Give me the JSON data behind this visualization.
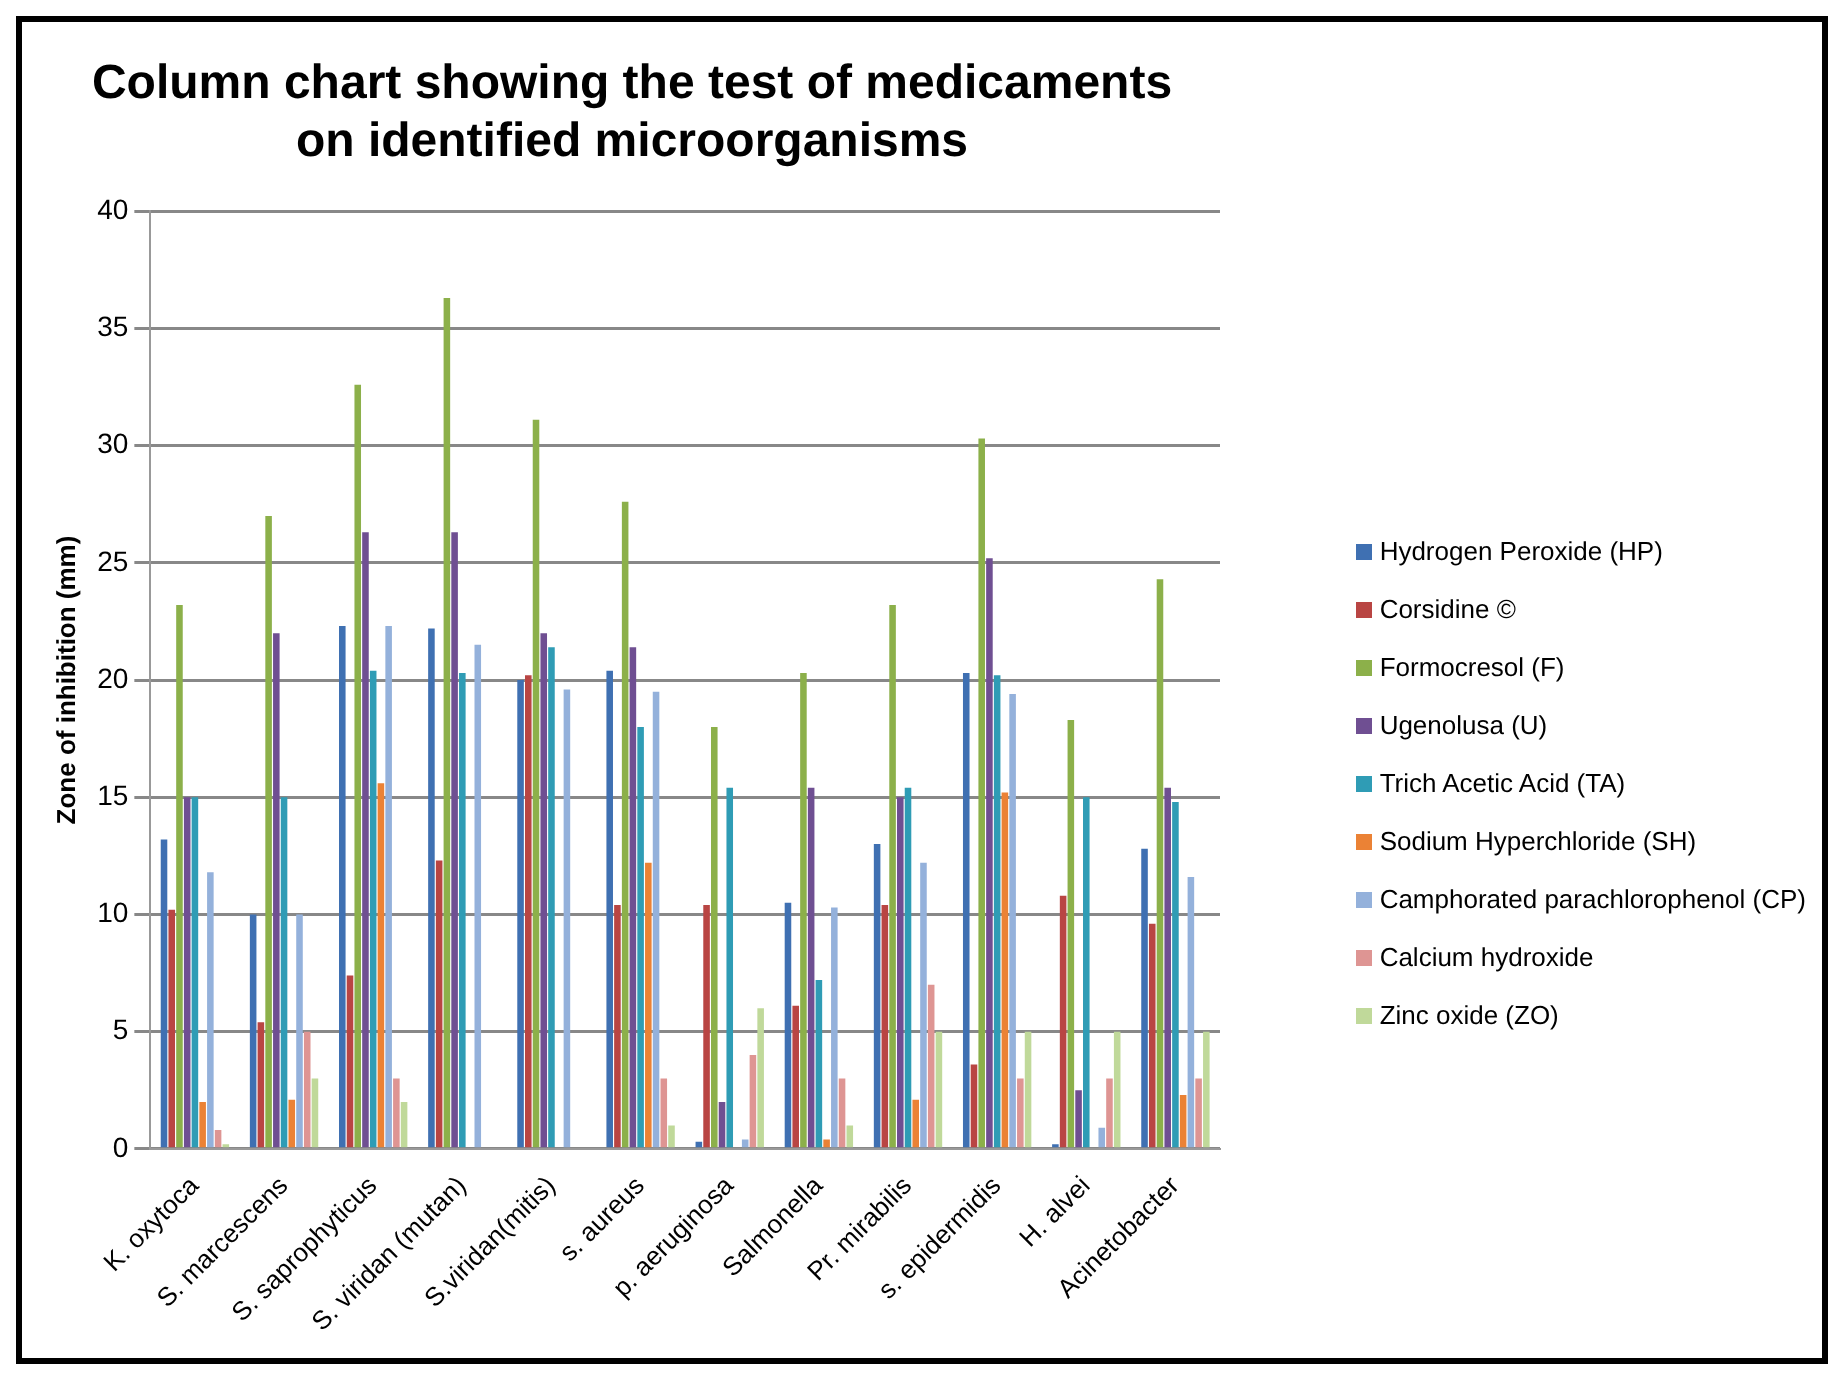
{
  "chart_data": {
    "type": "bar",
    "title": "Column chart showing the test of medicaments on identified microorganisms",
    "ylabel": "Zone of inhibition (mm)",
    "categories": [
      "K. oxytoca",
      "S. marcescens",
      "S. saprophyticus",
      "S. viridan (mutan)",
      "S.viridan(mitis)",
      "s. aureus",
      "p. aeruginosa",
      "Salmonella",
      "Pr. mirabilis",
      "s. epidermidis",
      "H. alvei",
      "Acinetobacter"
    ],
    "series": [
      {
        "name": "Hydrogen Peroxide (HP)",
        "color": "#3f70b2",
        "values": [
          13.2,
          10,
          22.3,
          22.2,
          20,
          20.4,
          0.3,
          10.5,
          13,
          20.3,
          0.2,
          12.8
        ]
      },
      {
        "name": "Corsidine ©",
        "color": "#b94543",
        "values": [
          10.2,
          5.4,
          7.4,
          12.3,
          20.2,
          10.4,
          10.4,
          6.1,
          10.4,
          3.6,
          10.8,
          9.6
        ]
      },
      {
        "name": "Formocresol (F)",
        "color": "#8cb04a",
        "values": [
          23.2,
          27,
          32.6,
          36.3,
          31.1,
          27.6,
          18,
          20.3,
          23.2,
          30.3,
          18.3,
          24.3
        ]
      },
      {
        "name": "Ugenolusa (U)",
        "color": "#6f4f92",
        "values": [
          15,
          22,
          26.3,
          26.3,
          22,
          21.4,
          2,
          15.4,
          15,
          25.2,
          2.5,
          15.4
        ]
      },
      {
        "name": "Trich Acetic Acid (TA)",
        "color": "#2f9cb5",
        "values": [
          15,
          15,
          20.4,
          20.3,
          21.4,
          18,
          15.4,
          7.2,
          15.4,
          20.2,
          15,
          14.8
        ]
      },
      {
        "name": "Sodium Hyperchloride (SH)",
        "color": "#eb8235",
        "values": [
          2,
          2.1,
          15.6,
          0,
          null,
          12.2,
          null,
          0.4,
          2.1,
          15.2,
          0,
          2.3
        ]
      },
      {
        "name": "Camphorated parachlorophenol (CP)",
        "color": "#94b1db",
        "values": [
          11.8,
          10,
          22.3,
          21.5,
          19.6,
          19.5,
          0.4,
          10.3,
          12.2,
          19.4,
          0.9,
          11.6
        ]
      },
      {
        "name": "Calcium hydroxide",
        "color": "#de9593",
        "values": [
          0.8,
          5,
          3,
          0,
          0,
          3,
          4,
          3,
          7,
          3,
          3,
          3
        ]
      },
      {
        "name": "Zinc oxide (ZO)",
        "color": "#c0d99a",
        "values": [
          0.2,
          3,
          2,
          0,
          0,
          1,
          6,
          1,
          5,
          5,
          5,
          5
        ]
      }
    ],
    "ylim": [
      0,
      40
    ],
    "yticks": [
      0,
      5,
      10,
      15,
      20,
      25,
      30,
      35,
      40
    ],
    "grid": "y",
    "legend": "right"
  }
}
